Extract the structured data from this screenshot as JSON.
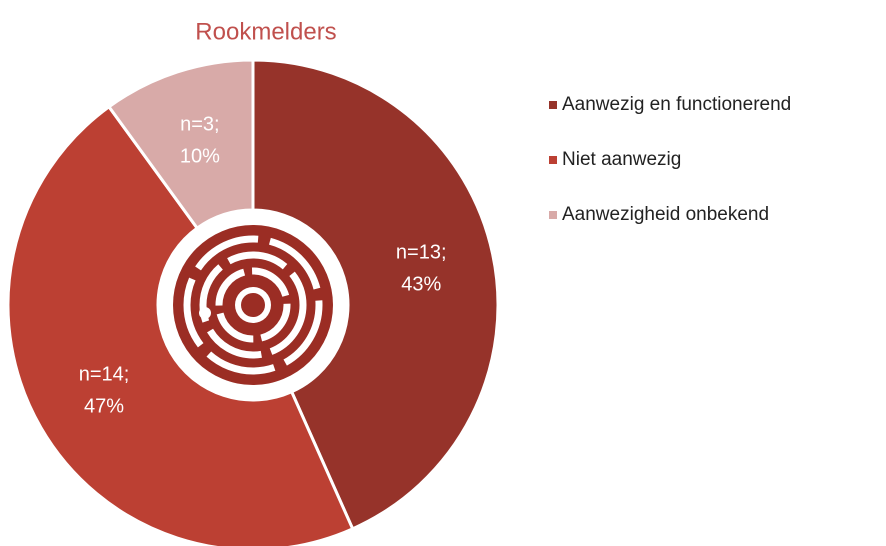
{
  "chart_data": {
    "type": "donut",
    "title": "Rookmelders",
    "categories": [
      "Aanwezig en functionerend",
      "Niet aanwezig",
      "Aanwezigheid onbekend"
    ],
    "values": [
      13,
      14,
      3
    ],
    "value_labels": [
      [
        "n=13;",
        "43%"
      ],
      [
        "n=14;",
        "47%"
      ],
      [
        "n=3;",
        "10%"
      ]
    ],
    "colors": [
      "#96332a",
      "#bc4033",
      "#d8aaa8"
    ],
    "legend": "right"
  }
}
